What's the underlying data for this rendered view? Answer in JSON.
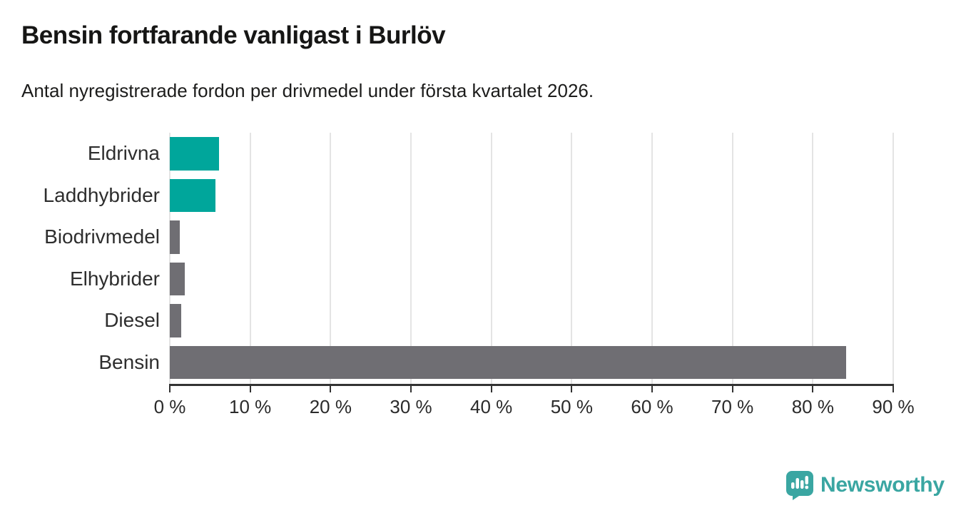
{
  "header": {
    "title": "Bensin fortfarande vanligast i Burlöv",
    "subtitle": "Antal nyregistrerade fordon per drivmedel under första kvartalet 2026."
  },
  "chart_data": {
    "type": "bar",
    "orientation": "horizontal",
    "title": "Bensin fortfarande vanligast i Burlöv",
    "subtitle": "Antal nyregistrerade fordon per drivmedel under första kvartalet 2026.",
    "categories": [
      "Eldrivna",
      "Laddhybrider",
      "Biodrivmedel",
      "Elhybrider",
      "Diesel",
      "Bensin"
    ],
    "values": [
      6.1,
      5.7,
      1.2,
      1.9,
      1.4,
      84.1
    ],
    "unit": "%",
    "bar_colors": [
      "#00a69b",
      "#00a69b",
      "#6f6e73",
      "#6f6e73",
      "#6f6e73",
      "#6f6e73"
    ],
    "highlight_color": "#00a69b",
    "base_color": "#6f6e73",
    "xlim": [
      0,
      90
    ],
    "xticks": [
      0,
      10,
      20,
      30,
      40,
      50,
      60,
      70,
      80,
      90
    ],
    "xtick_labels": [
      "0 %",
      "10 %",
      "20 %",
      "30 %",
      "40 %",
      "50 %",
      "60 %",
      "70 %",
      "80 %",
      "90 %"
    ],
    "xlabel": "",
    "ylabel": "",
    "grid": true,
    "grid_color": "#e4e4e4",
    "axis_color": "#333333",
    "legend": false
  },
  "footer": {
    "brand": "Newsworthy",
    "logo_icon": "speech-bubble-bar-chart-icon",
    "brand_color": "#3aa6a2"
  }
}
